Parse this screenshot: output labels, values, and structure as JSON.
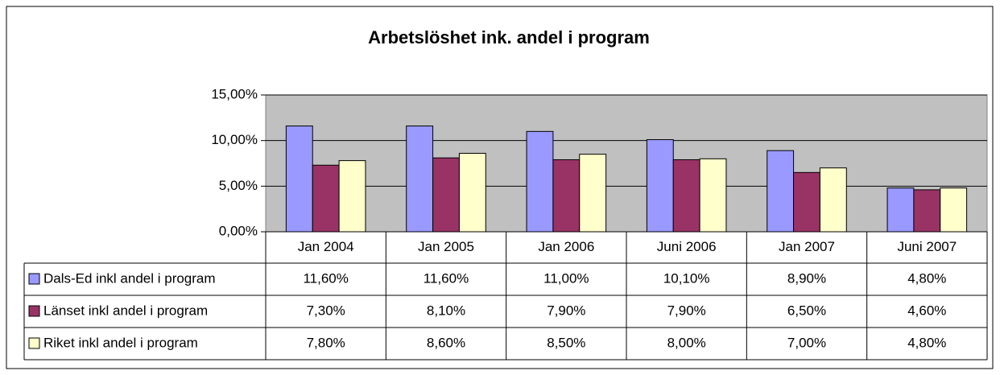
{
  "chart_data": {
    "type": "bar",
    "title": "Arbetslöshet ink. andel i program",
    "categories": [
      "Jan 2004",
      "Jan 2005",
      "Jan 2006",
      "Juni 2006",
      "Jan 2007",
      "Juni 2007"
    ],
    "series": [
      {
        "name": "Dals-Ed inkl andel i program",
        "color": "#9999ff",
        "values": [
          11.6,
          11.6,
          11.0,
          10.1,
          8.9,
          4.8
        ],
        "value_labels": [
          "11,60%",
          "11,60%",
          "11,00%",
          "10,10%",
          "8,90%",
          "4,80%"
        ]
      },
      {
        "name": "Länset inkl andel i program",
        "color": "#993366",
        "values": [
          7.3,
          8.1,
          7.9,
          7.9,
          6.5,
          4.6
        ],
        "value_labels": [
          "7,30%",
          "8,10%",
          "7,90%",
          "7,90%",
          "6,50%",
          "4,60%"
        ]
      },
      {
        "name": "Riket inkl andel i program",
        "color": "#ffffcc",
        "values": [
          7.8,
          8.6,
          8.5,
          8.0,
          7.0,
          4.8
        ],
        "value_labels": [
          "7,80%",
          "8,60%",
          "8,50%",
          "8,00%",
          "7,00%",
          "4,80%"
        ]
      }
    ],
    "ylim": [
      0,
      15
    ],
    "yticks": [
      {
        "value": 0,
        "label": "0,00%"
      },
      {
        "value": 5,
        "label": "5,00%"
      },
      {
        "value": 10,
        "label": "10,00%"
      },
      {
        "value": 15,
        "label": "15,00%"
      }
    ],
    "grid": true,
    "plot_background": "#c0c0c0"
  }
}
